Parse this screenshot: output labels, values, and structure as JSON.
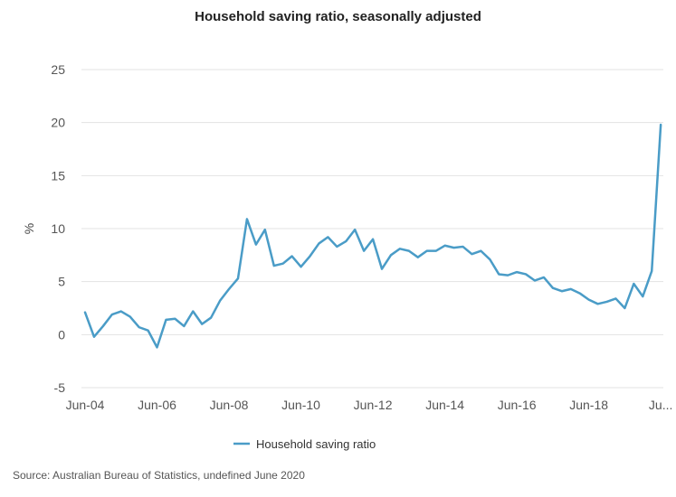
{
  "chart_data": {
    "type": "line",
    "title": "Household saving ratio, seasonally adjusted",
    "xlabel": "",
    "ylabel": "%",
    "ylim": [
      -5,
      25
    ],
    "yticks": [
      "-5",
      "0",
      "5",
      "10",
      "15",
      "20",
      "25"
    ],
    "xticks": [
      "Jun-04",
      "Jun-06",
      "Jun-08",
      "Jun-10",
      "Jun-12",
      "Jun-14",
      "Jun-16",
      "Jun-18",
      "Ju..."
    ],
    "grid": true,
    "legend_position": "bottom-center",
    "series": [
      {
        "name": "Household saving ratio",
        "color": "#4a9cc7",
        "x": [
          "Jun-04",
          "Sep-04",
          "Dec-04",
          "Mar-05",
          "Jun-05",
          "Sep-05",
          "Dec-05",
          "Mar-06",
          "Jun-06",
          "Sep-06",
          "Dec-06",
          "Mar-07",
          "Jun-07",
          "Sep-07",
          "Dec-07",
          "Mar-08",
          "Jun-08",
          "Sep-08",
          "Dec-08",
          "Mar-09",
          "Jun-09",
          "Sep-09",
          "Dec-09",
          "Mar-10",
          "Jun-10",
          "Sep-10",
          "Dec-10",
          "Mar-11",
          "Jun-11",
          "Sep-11",
          "Dec-11",
          "Mar-12",
          "Jun-12",
          "Sep-12",
          "Dec-12",
          "Mar-13",
          "Jun-13",
          "Sep-13",
          "Dec-13",
          "Mar-14",
          "Jun-14",
          "Sep-14",
          "Dec-14",
          "Mar-15",
          "Jun-15",
          "Sep-15",
          "Dec-15",
          "Mar-16",
          "Jun-16",
          "Sep-16",
          "Dec-16",
          "Mar-17",
          "Jun-17",
          "Sep-17",
          "Dec-17",
          "Mar-18",
          "Jun-18",
          "Sep-18",
          "Dec-18",
          "Mar-19",
          "Jun-19",
          "Sep-19",
          "Dec-19",
          "Mar-20",
          "Jun-20"
        ],
        "values": [
          2.1,
          -0.2,
          0.8,
          1.9,
          2.2,
          1.7,
          0.7,
          0.4,
          -1.2,
          1.4,
          1.5,
          0.8,
          2.2,
          1.0,
          1.6,
          3.2,
          4.3,
          5.3,
          10.9,
          8.5,
          9.9,
          6.5,
          6.7,
          7.4,
          6.4,
          7.4,
          8.6,
          9.2,
          8.3,
          8.8,
          9.9,
          7.9,
          9.0,
          6.2,
          7.5,
          8.1,
          7.9,
          7.3,
          7.9,
          7.9,
          8.4,
          8.2,
          8.3,
          7.6,
          7.9,
          7.1,
          5.7,
          5.6,
          5.9,
          5.7,
          5.1,
          5.4,
          4.4,
          4.1,
          4.3,
          3.9,
          3.3,
          2.9,
          3.1,
          3.4,
          2.5,
          4.8,
          3.6,
          6.0,
          19.8
        ]
      }
    ]
  },
  "source": "Source: Australian Bureau of Statistics, undefined June 2020"
}
